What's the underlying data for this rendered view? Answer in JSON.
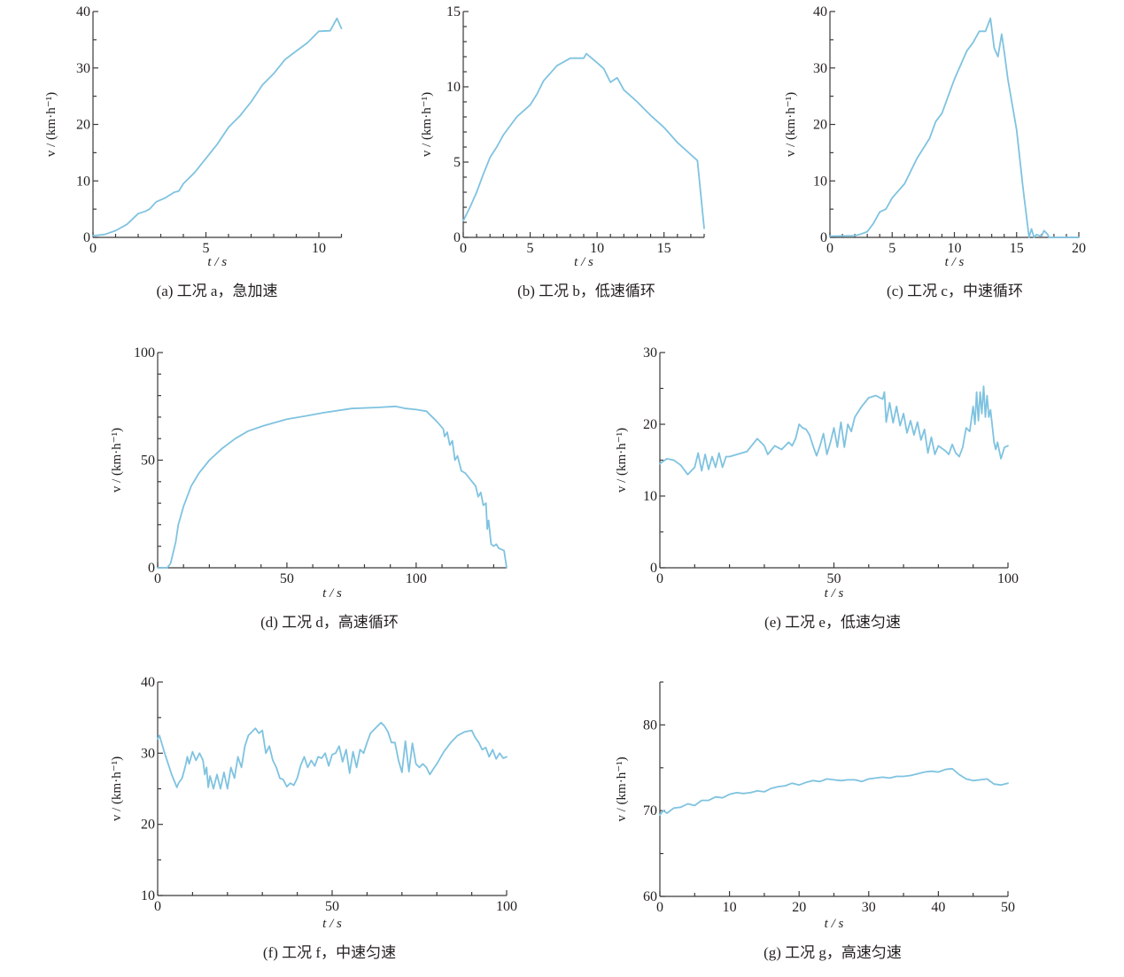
{
  "style": {
    "line_color": "#7fc3e0",
    "axis_color": "#3a3a3a"
  },
  "chart_data": [
    {
      "id": "a",
      "type": "line",
      "caption": "(a)  工况 a，急加速",
      "xlabel": "t / s",
      "ylabel": "v / (km·h⁻¹)",
      "xlim": [
        0,
        11
      ],
      "ylim": [
        0,
        40
      ],
      "xticks": [
        0,
        5,
        10
      ],
      "xminor": 1,
      "yticks": [
        0,
        10,
        20,
        30,
        40
      ],
      "yminor": 5,
      "grid": false,
      "x": [
        0,
        0.5,
        1,
        1.5,
        2,
        2.3,
        2.5,
        2.8,
        3.2,
        3.6,
        3.8,
        4,
        4.5,
        5,
        5.5,
        6,
        6.5,
        7,
        7.5,
        8,
        8.5,
        9,
        9.5,
        10,
        10.5,
        10.8,
        11
      ],
      "y": [
        0.3,
        0.5,
        1.2,
        2.3,
        4.2,
        4.6,
        5,
        6.3,
        7,
        8,
        8.2,
        9.5,
        11.5,
        14,
        16.5,
        19.5,
        21.5,
        24,
        27,
        29,
        31.5,
        33,
        34.5,
        36.5,
        36.6,
        38.8,
        37
      ]
    },
    {
      "id": "b",
      "type": "line",
      "caption": "(b)  工况 b，低速循环",
      "xlabel": "t / s",
      "ylabel": "v / (km·h⁻¹)",
      "xlim": [
        0,
        18
      ],
      "ylim": [
        0,
        15
      ],
      "xticks": [
        0,
        5,
        10,
        15
      ],
      "xminor": 1,
      "yticks": [
        0,
        5,
        10,
        15
      ],
      "yminor": 1,
      "grid": false,
      "x": [
        0,
        0.5,
        1,
        1.5,
        2,
        2.5,
        3,
        4,
        5,
        5.5,
        6,
        7,
        8,
        9,
        9.2,
        10,
        10.5,
        11,
        11.5,
        12,
        13,
        14,
        15,
        16,
        17,
        17.5,
        18
      ],
      "y": [
        1.1,
        2,
        3,
        4.2,
        5.3,
        6,
        6.8,
        8,
        8.8,
        9.5,
        10.4,
        11.4,
        11.9,
        11.9,
        12.2,
        11.6,
        11.2,
        10.3,
        10.6,
        9.8,
        9,
        8.1,
        7.3,
        6.3,
        5.5,
        5.1,
        0.6
      ]
    },
    {
      "id": "c",
      "type": "line",
      "caption": "(c)  工况 c，中速循环",
      "xlabel": "t / s",
      "ylabel": "v / (km·h⁻¹)",
      "xlim": [
        0,
        20
      ],
      "ylim": [
        0,
        40
      ],
      "xticks": [
        0,
        5,
        10,
        15,
        20
      ],
      "xminor": 1,
      "yticks": [
        0,
        10,
        20,
        30,
        40
      ],
      "yminor": 5,
      "grid": false,
      "x": [
        0,
        2,
        2.5,
        3,
        3.5,
        4,
        4.5,
        5,
        6,
        7,
        8,
        8.5,
        9,
        10,
        11,
        11.5,
        12,
        12.5,
        12.9,
        13.2,
        13.5,
        13.8,
        14,
        14.3,
        15,
        15.5,
        16,
        16.2,
        16.4,
        16.6,
        17,
        17.2,
        17.5,
        17.6,
        20
      ],
      "y": [
        0.2,
        0.3,
        0.6,
        1,
        2.5,
        4.5,
        5,
        7,
        9.5,
        14,
        17.5,
        20.5,
        22,
        28,
        33,
        34.5,
        36.5,
        36.5,
        38.8,
        33.5,
        32,
        36,
        33,
        28,
        19,
        9,
        0,
        1.5,
        0,
        0.5,
        0.2,
        1.2,
        0.5,
        0,
        0
      ]
    },
    {
      "id": "d",
      "type": "line",
      "caption": "(d)  工况 d，高速循环",
      "xlabel": "t / s",
      "ylabel": "v / (km·h⁻¹)",
      "xlim": [
        0,
        135
      ],
      "ylim": [
        0,
        100
      ],
      "xticks": [
        0,
        50,
        100
      ],
      "xminor": 10,
      "yticks": [
        0,
        50,
        100
      ],
      "yminor": 10,
      "grid": false,
      "x": [
        0,
        3.7,
        5,
        7,
        8,
        10,
        13,
        16,
        20,
        25,
        30,
        35,
        41,
        50,
        57,
        64,
        75,
        85,
        92,
        96,
        100,
        104,
        108,
        110.5,
        111,
        112,
        113,
        114,
        115,
        116,
        117.5,
        119,
        121,
        123,
        124,
        125,
        126,
        127,
        127.5,
        128,
        129,
        130,
        131,
        132,
        134,
        135
      ],
      "y": [
        0,
        0,
        2,
        12,
        20,
        28.5,
        38,
        44,
        50,
        55.5,
        60,
        63.5,
        66,
        69,
        70.5,
        72,
        74,
        74.5,
        75,
        74,
        73.5,
        72.7,
        68,
        64.5,
        61,
        63,
        57,
        59,
        50,
        52,
        45,
        44,
        41,
        38,
        33,
        35,
        29,
        30,
        18,
        22,
        11,
        10,
        11,
        9,
        8,
        0
      ]
    },
    {
      "id": "e",
      "type": "line",
      "caption": "(e)  工况 e，低速匀速",
      "xlabel": "t / s",
      "ylabel": "v / (km·h⁻¹)",
      "xlim": [
        0,
        100
      ],
      "ylim": [
        0,
        30
      ],
      "xticks": [
        0,
        50,
        100
      ],
      "xminor": 10,
      "yticks": [
        0,
        10,
        20,
        30
      ],
      "yminor": 5,
      "grid": false,
      "x": [
        0,
        2,
        4,
        6,
        8,
        9,
        10,
        11,
        12,
        13,
        14,
        15,
        16,
        17,
        18,
        19,
        20,
        25,
        27,
        28,
        30,
        31,
        33,
        35,
        37,
        38,
        39,
        40,
        41,
        42,
        43,
        44,
        45,
        46,
        47,
        48,
        49,
        50,
        51,
        52,
        53,
        54,
        55,
        56,
        58,
        60,
        62,
        64,
        64.5,
        65,
        66,
        67,
        68,
        69,
        70,
        71,
        72,
        73,
        74,
        75,
        76,
        77,
        78,
        79,
        80,
        82,
        83,
        84,
        85,
        86,
        87,
        88,
        89,
        90,
        90.5,
        91,
        91.5,
        92,
        92.5,
        93,
        93.5,
        94,
        94.5,
        95,
        96,
        96.5,
        97,
        98,
        99,
        100
      ],
      "y": [
        14.5,
        15.2,
        15,
        14.3,
        13,
        13.5,
        14,
        16,
        13.5,
        15.8,
        13.7,
        15.5,
        14,
        16,
        14,
        15.5,
        15.5,
        16.2,
        17.4,
        18,
        17,
        15.8,
        17,
        16.5,
        17.5,
        17,
        18,
        20,
        19.5,
        19.3,
        18.5,
        17,
        15.6,
        17,
        18.7,
        15.8,
        17.5,
        19.5,
        16.8,
        20.3,
        16.8,
        20,
        19,
        21,
        22.5,
        23.7,
        24,
        23.5,
        24.5,
        20.3,
        23,
        20.2,
        22.5,
        19.8,
        21.5,
        18.8,
        20.5,
        18.5,
        20.3,
        17.8,
        19.3,
        16,
        18.2,
        15.8,
        17,
        16.3,
        15.8,
        17.2,
        16,
        15.5,
        16.8,
        19.5,
        19,
        22.5,
        20,
        24.5,
        20.5,
        24.5,
        21.5,
        25.3,
        21,
        24,
        21,
        22,
        17.5,
        16.5,
        17.5,
        15.2,
        16.8,
        17
      ]
    },
    {
      "id": "f",
      "type": "line",
      "caption": "(f)  工况 f，中速匀速",
      "xlabel": "t / s",
      "ylabel": "v / (km·h⁻¹)",
      "xlim": [
        0,
        100
      ],
      "ylim": [
        10,
        40
      ],
      "xticks": [
        0,
        50,
        100
      ],
      "xminor": 10,
      "yticks": [
        10,
        20,
        30,
        40
      ],
      "yminor": 5,
      "grid": false,
      "x": [
        0,
        0.5,
        2,
        4,
        5.5,
        6,
        7,
        8,
        8.5,
        9,
        10,
        11,
        12,
        13,
        13.5,
        14,
        14.5,
        15,
        16,
        17,
        18,
        19,
        20,
        21,
        22,
        23,
        24,
        25,
        26,
        27,
        28,
        29,
        30,
        31,
        32,
        33,
        34,
        35,
        36,
        37,
        38,
        39,
        40,
        41,
        42,
        43,
        44,
        45,
        46,
        47,
        48,
        49,
        50,
        51,
        52,
        53,
        54,
        55,
        56,
        57,
        58,
        59,
        60,
        61,
        63,
        64,
        65,
        66,
        67,
        68,
        69,
        70,
        71,
        72,
        73,
        74,
        75,
        76,
        77,
        78,
        79,
        80,
        82,
        84,
        86,
        88,
        90,
        91,
        92,
        93,
        94,
        95,
        96,
        97,
        98,
        99,
        100
      ],
      "y": [
        32,
        32.5,
        30,
        27,
        25.2,
        25.8,
        26.5,
        28.3,
        29.5,
        28.5,
        30.2,
        29,
        30,
        29,
        27,
        28,
        25.2,
        26.8,
        25,
        27,
        25,
        27.3,
        25,
        28,
        26.5,
        29.5,
        28,
        31,
        32.5,
        33,
        33.5,
        32.8,
        33.2,
        30,
        31,
        29,
        28,
        26.5,
        26.3,
        25.3,
        25.8,
        25.5,
        26.5,
        28.3,
        29.5,
        28,
        29,
        28.2,
        29.5,
        29.3,
        30,
        28.2,
        29.8,
        30,
        31,
        28.8,
        30.5,
        27.2,
        30.2,
        28,
        30.5,
        30,
        31.5,
        32.8,
        33.8,
        34.3,
        33.8,
        33,
        31.5,
        31.5,
        29,
        27.3,
        31.7,
        27.4,
        31.4,
        28.5,
        28,
        28.5,
        28,
        27,
        27.8,
        28.5,
        30.2,
        31.5,
        32.5,
        33,
        33.2,
        32.2,
        31.5,
        30.5,
        30.8,
        29.5,
        30.5,
        29.2,
        30,
        29.3,
        29.5
      ]
    },
    {
      "id": "g",
      "type": "line",
      "caption": "(g)  工况 g，高速匀速",
      "xlabel": "t / s",
      "ylabel": "v / (km·h⁻¹)",
      "xlim": [
        0,
        50
      ],
      "ylim": [
        60,
        85
      ],
      "xticks": [
        0,
        10,
        20,
        30,
        40,
        50
      ],
      "xminor": 5,
      "yticks": [
        60,
        70,
        80
      ],
      "yminor": 5,
      "grid": false,
      "x": [
        0,
        0.5,
        1,
        2,
        3,
        4,
        5,
        6,
        7,
        8,
        9,
        10,
        11,
        12,
        13,
        14,
        15,
        16,
        17,
        18,
        19,
        20,
        21,
        22,
        23,
        24,
        25,
        26,
        27,
        28,
        29,
        30,
        31,
        32,
        33,
        34,
        35,
        36,
        37,
        38,
        39,
        40,
        41,
        42,
        43,
        44,
        45,
        46,
        47,
        48,
        49,
        50
      ],
      "y": [
        69.5,
        70,
        69.7,
        70.3,
        70.4,
        70.8,
        70.6,
        71.2,
        71.2,
        71.6,
        71.5,
        71.9,
        72.1,
        72,
        72.1,
        72.3,
        72.2,
        72.6,
        72.8,
        72.9,
        73.2,
        73,
        73.3,
        73.5,
        73.4,
        73.7,
        73.6,
        73.5,
        73.6,
        73.6,
        73.4,
        73.7,
        73.8,
        73.9,
        73.8,
        74,
        74,
        74.1,
        74.3,
        74.5,
        74.6,
        74.5,
        74.8,
        74.9,
        74.2,
        73.7,
        73.5,
        73.6,
        73.7,
        73.1,
        73,
        73.2
      ]
    }
  ]
}
